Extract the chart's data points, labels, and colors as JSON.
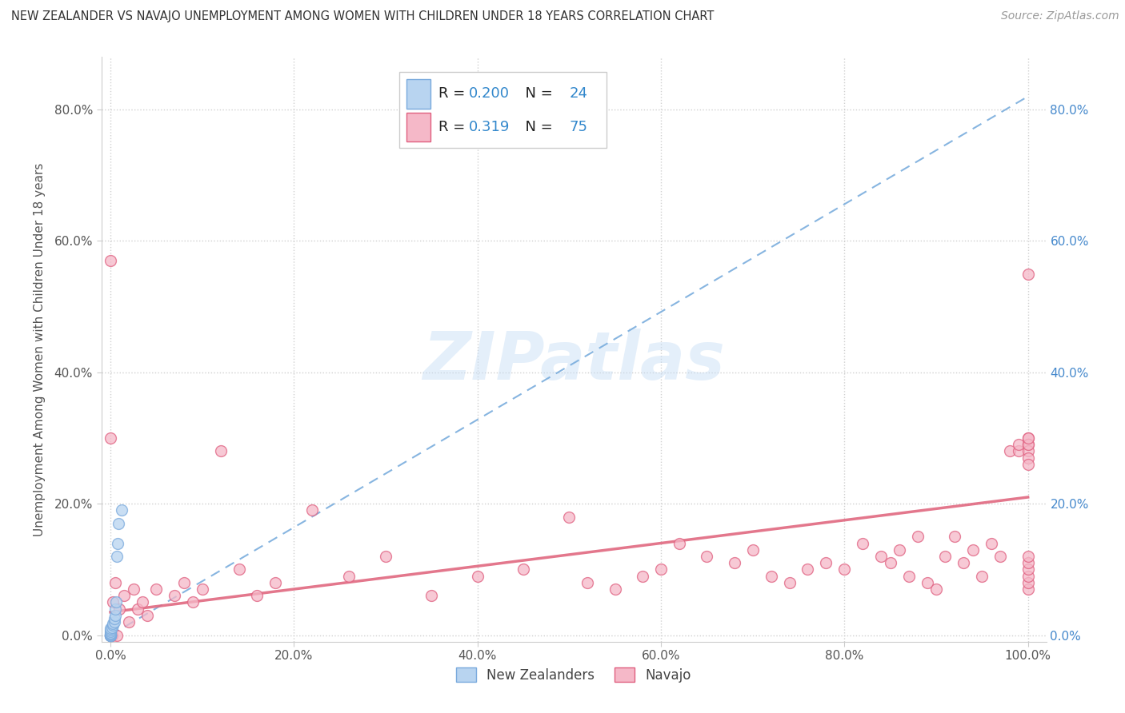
{
  "title": "NEW ZEALANDER VS NAVAJO UNEMPLOYMENT AMONG WOMEN WITH CHILDREN UNDER 18 YEARS CORRELATION CHART",
  "source": "Source: ZipAtlas.com",
  "ylabel": "Unemployment Among Women with Children Under 18 years",
  "x_tick_labels": [
    "0.0%",
    "20.0%",
    "40.0%",
    "60.0%",
    "80.0%",
    "100.0%"
  ],
  "x_tick_values": [
    0,
    0.2,
    0.4,
    0.6,
    0.8,
    1.0
  ],
  "y_tick_labels": [
    "0.0%",
    "20.0%",
    "40.0%",
    "60.0%",
    "80.0%"
  ],
  "y_tick_values": [
    0,
    0.2,
    0.4,
    0.6,
    0.8
  ],
  "xlim": [
    -0.01,
    1.02
  ],
  "ylim": [
    -0.01,
    0.88
  ],
  "legend_entries": [
    {
      "label": "New Zealanders",
      "color": "#b8d4f0",
      "edge_color": "#7aaadd",
      "R": "0.200",
      "N": "24"
    },
    {
      "label": "Navajo",
      "color": "#f5b8c8",
      "edge_color": "#e06080",
      "R": "0.319",
      "N": "75"
    }
  ],
  "nz_scatter_x": [
    0.0,
    0.0,
    0.0,
    0.0,
    0.0,
    0.0,
    0.0,
    0.0,
    0.0,
    0.0,
    0.0,
    0.0,
    0.002,
    0.003,
    0.003,
    0.004,
    0.004,
    0.005,
    0.005,
    0.006,
    0.007,
    0.008,
    0.009,
    0.012
  ],
  "nz_scatter_y": [
    0.0,
    0.0,
    0.0,
    0.0,
    0.0,
    0.0,
    0.001,
    0.002,
    0.003,
    0.005,
    0.008,
    0.01,
    0.012,
    0.015,
    0.018,
    0.02,
    0.025,
    0.03,
    0.04,
    0.05,
    0.12,
    0.14,
    0.17,
    0.19
  ],
  "navajo_scatter_x": [
    0.0,
    0.0,
    0.0,
    0.002,
    0.003,
    0.005,
    0.007,
    0.01,
    0.015,
    0.02,
    0.025,
    0.03,
    0.035,
    0.04,
    0.05,
    0.07,
    0.08,
    0.09,
    0.1,
    0.12,
    0.14,
    0.16,
    0.18,
    0.22,
    0.26,
    0.3,
    0.35,
    0.4,
    0.45,
    0.5,
    0.52,
    0.55,
    0.58,
    0.6,
    0.62,
    0.65,
    0.68,
    0.7,
    0.72,
    0.74,
    0.76,
    0.78,
    0.8,
    0.82,
    0.84,
    0.85,
    0.86,
    0.87,
    0.88,
    0.89,
    0.9,
    0.91,
    0.92,
    0.93,
    0.94,
    0.95,
    0.96,
    0.97,
    0.98,
    0.99,
    0.99,
    1.0,
    1.0,
    1.0,
    1.0,
    1.0,
    1.0,
    1.0,
    1.0,
    1.0,
    1.0,
    1.0,
    1.0,
    1.0,
    1.0
  ],
  "navajo_scatter_y": [
    0.0,
    0.57,
    0.3,
    0.0,
    0.05,
    0.08,
    0.0,
    0.04,
    0.06,
    0.02,
    0.07,
    0.04,
    0.05,
    0.03,
    0.07,
    0.06,
    0.08,
    0.05,
    0.07,
    0.28,
    0.1,
    0.06,
    0.08,
    0.19,
    0.09,
    0.12,
    0.06,
    0.09,
    0.1,
    0.18,
    0.08,
    0.07,
    0.09,
    0.1,
    0.14,
    0.12,
    0.11,
    0.13,
    0.09,
    0.08,
    0.1,
    0.11,
    0.1,
    0.14,
    0.12,
    0.11,
    0.13,
    0.09,
    0.15,
    0.08,
    0.07,
    0.12,
    0.15,
    0.11,
    0.13,
    0.09,
    0.14,
    0.12,
    0.28,
    0.28,
    0.29,
    0.3,
    0.29,
    0.28,
    0.27,
    0.26,
    0.07,
    0.08,
    0.09,
    0.1,
    0.11,
    0.12,
    0.29,
    0.3,
    0.55
  ],
  "nz_line_color": "#7aaddd",
  "navajo_line_color": "#e06880",
  "nz_trendline": [
    0.0,
    0.0,
    1.0,
    0.82
  ],
  "navajo_trendline": [
    0.0,
    0.035,
    1.0,
    0.21
  ],
  "watermark_text": "ZIPatlas",
  "background_color": "#ffffff",
  "grid_color": "#d0d0d0",
  "scatter_size": 100,
  "scatter_alpha": 0.75
}
